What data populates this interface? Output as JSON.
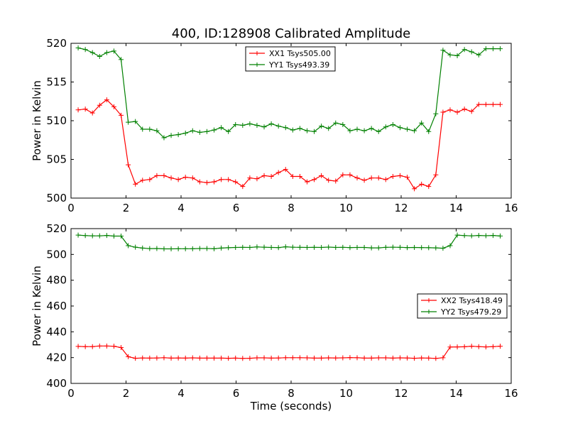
{
  "figure": {
    "title": "400, ID:128908 Calibrated Amplitude"
  },
  "colors": {
    "red_series": "#ff0000",
    "green_series": "#008000",
    "axes": "#000000",
    "background": "#ffffff"
  },
  "chart_data": [
    {
      "type": "line",
      "title": "400, ID:128908 Calibrated Amplitude",
      "xlabel": "",
      "ylabel": "Power in Kelvin",
      "xlim": [
        0,
        16
      ],
      "ylim": [
        500,
        520
      ],
      "xticks": [
        "0",
        "2",
        "4",
        "6",
        "8",
        "10",
        "12",
        "14",
        "16"
      ],
      "yticks": [
        "500",
        "505",
        "510",
        "515",
        "520"
      ],
      "grid": false,
      "legend_position": "top-center",
      "x": [
        0.26,
        0.52,
        0.78,
        1.04,
        1.3,
        1.56,
        1.82,
        2.08,
        2.34,
        2.6,
        2.86,
        3.12,
        3.38,
        3.64,
        3.9,
        4.16,
        4.42,
        4.68,
        4.94,
        5.2,
        5.46,
        5.72,
        5.98,
        6.24,
        6.5,
        6.76,
        7.02,
        7.28,
        7.54,
        7.8,
        8.06,
        8.32,
        8.58,
        8.84,
        9.1,
        9.36,
        9.62,
        9.88,
        10.14,
        10.4,
        10.66,
        10.92,
        11.18,
        11.44,
        11.7,
        11.96,
        12.22,
        12.48,
        12.74,
        13.0,
        13.26,
        13.52,
        13.78,
        14.04,
        14.3,
        14.56,
        14.82,
        15.08,
        15.34,
        15.6
      ],
      "series": [
        {
          "name": "XX1 Tsys505.00",
          "color": "#ff0000",
          "values": [
            511.4,
            511.5,
            511.0,
            512.0,
            512.7,
            511.8,
            510.7,
            504.3,
            501.8,
            502.3,
            502.4,
            502.9,
            502.9,
            502.6,
            502.4,
            502.7,
            502.6,
            502.1,
            502.0,
            502.1,
            502.4,
            502.4,
            502.1,
            501.5,
            502.6,
            502.5,
            502.9,
            502.8,
            503.3,
            503.7,
            502.8,
            502.8,
            502.1,
            502.4,
            502.9,
            502.3,
            502.2,
            503.0,
            503.0,
            502.6,
            502.3,
            502.6,
            502.6,
            502.4,
            502.8,
            502.9,
            502.7,
            501.2,
            501.8,
            501.5,
            503.0,
            511.1,
            511.4,
            511.1,
            511.5,
            511.2,
            512.1,
            512.1,
            512.1,
            512.1
          ]
        },
        {
          "name": "YY1 Tsys493.39",
          "color": "#008000",
          "values": [
            519.4,
            519.2,
            518.8,
            518.3,
            518.8,
            519.0,
            517.9,
            509.8,
            509.9,
            508.9,
            508.9,
            508.7,
            507.8,
            508.1,
            508.2,
            508.4,
            508.7,
            508.5,
            508.6,
            508.8,
            509.1,
            508.6,
            509.5,
            509.4,
            509.6,
            509.4,
            509.2,
            509.6,
            509.3,
            509.1,
            508.8,
            509.0,
            508.7,
            508.6,
            509.3,
            509.0,
            509.7,
            509.5,
            508.7,
            508.9,
            508.7,
            509.0,
            508.6,
            509.2,
            509.5,
            509.1,
            508.9,
            508.7,
            509.7,
            508.6,
            510.9,
            519.1,
            518.5,
            518.4,
            519.2,
            518.9,
            518.5,
            519.3,
            519.3,
            519.3
          ]
        }
      ]
    },
    {
      "type": "line",
      "title": "",
      "xlabel": "Time (seconds)",
      "ylabel": "Power in Kelvin",
      "xlim": [
        0,
        16
      ],
      "ylim": [
        400,
        520
      ],
      "xticks": [
        "0",
        "2",
        "4",
        "6",
        "8",
        "10",
        "12",
        "14",
        "16"
      ],
      "yticks": [
        "400",
        "420",
        "440",
        "460",
        "480",
        "500",
        "520"
      ],
      "grid": false,
      "legend_position": "center-right",
      "x": [
        0.26,
        0.52,
        0.78,
        1.04,
        1.3,
        1.56,
        1.82,
        2.08,
        2.34,
        2.6,
        2.86,
        3.12,
        3.38,
        3.64,
        3.9,
        4.16,
        4.42,
        4.68,
        4.94,
        5.2,
        5.46,
        5.72,
        5.98,
        6.24,
        6.5,
        6.76,
        7.02,
        7.28,
        7.54,
        7.8,
        8.06,
        8.32,
        8.58,
        8.84,
        9.1,
        9.36,
        9.62,
        9.88,
        10.14,
        10.4,
        10.66,
        10.92,
        11.18,
        11.44,
        11.7,
        11.96,
        12.22,
        12.48,
        12.74,
        13.0,
        13.26,
        13.52,
        13.78,
        14.04,
        14.3,
        14.56,
        14.82,
        15.08,
        15.34,
        15.6
      ],
      "series": [
        {
          "name": "XX2 Tsys418.49",
          "color": "#ff0000",
          "values": [
            428.7,
            428.5,
            428.5,
            429.0,
            429.0,
            428.8,
            427.8,
            420.7,
            419.5,
            419.7,
            419.6,
            419.7,
            419.9,
            419.6,
            419.7,
            419.6,
            419.8,
            419.6,
            419.6,
            419.6,
            419.6,
            419.5,
            419.6,
            419.4,
            419.5,
            419.8,
            419.8,
            419.6,
            419.7,
            419.9,
            419.9,
            419.9,
            419.8,
            419.6,
            419.6,
            419.8,
            419.7,
            419.8,
            420.0,
            419.9,
            419.6,
            419.6,
            419.8,
            419.8,
            419.6,
            419.8,
            419.7,
            419.5,
            419.7,
            419.6,
            419.4,
            419.9,
            428.2,
            428.3,
            428.4,
            428.8,
            428.5,
            428.3,
            428.5,
            428.8
          ]
        },
        {
          "name": "YY2 Tsys479.29",
          "color": "#008000",
          "values": [
            515.0,
            514.6,
            514.4,
            514.4,
            514.7,
            514.2,
            514.2,
            506.8,
            505.6,
            504.9,
            504.5,
            504.6,
            504.3,
            504.3,
            504.4,
            504.4,
            504.4,
            504.6,
            504.6,
            504.4,
            504.9,
            505.2,
            505.4,
            505.5,
            505.4,
            505.8,
            505.6,
            505.4,
            505.3,
            505.9,
            505.6,
            505.5,
            505.4,
            505.5,
            505.4,
            505.7,
            505.4,
            505.5,
            505.3,
            505.4,
            505.4,
            505.1,
            505.1,
            505.5,
            505.6,
            505.5,
            505.3,
            505.4,
            505.3,
            505.2,
            505.1,
            504.8,
            506.8,
            515.0,
            514.6,
            514.4,
            514.7,
            514.5,
            514.7,
            514.3
          ]
        }
      ]
    }
  ]
}
